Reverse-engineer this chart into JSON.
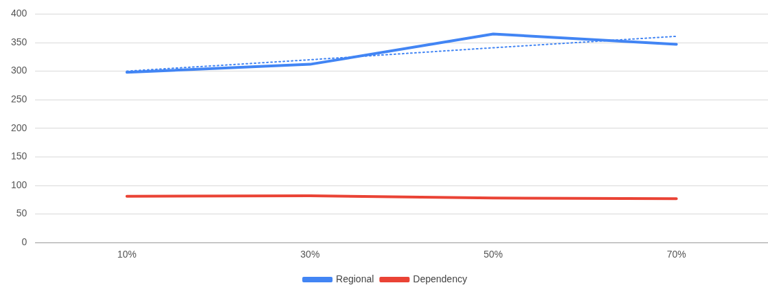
{
  "chart_data": {
    "type": "line",
    "categories": [
      "10%",
      "30%",
      "50%",
      "70%"
    ],
    "series": [
      {
        "name": "Regional",
        "color": "#4285f4",
        "values": [
          298,
          312,
          365,
          347
        ]
      },
      {
        "name": "Dependency",
        "color": "#ea4335",
        "values": [
          81,
          82,
          78,
          77
        ]
      },
      {
        "color": "#4285f4",
        "values": [
          300,
          320,
          341,
          361
        ],
        "line_style": "dotted"
      }
    ],
    "ylim": [
      0,
      400
    ],
    "yticks": [
      0,
      50,
      100,
      150,
      200,
      250,
      300,
      350,
      400
    ],
    "grid": "y",
    "legend": "bottom",
    "marker": "none",
    "line_style": "solid"
  }
}
